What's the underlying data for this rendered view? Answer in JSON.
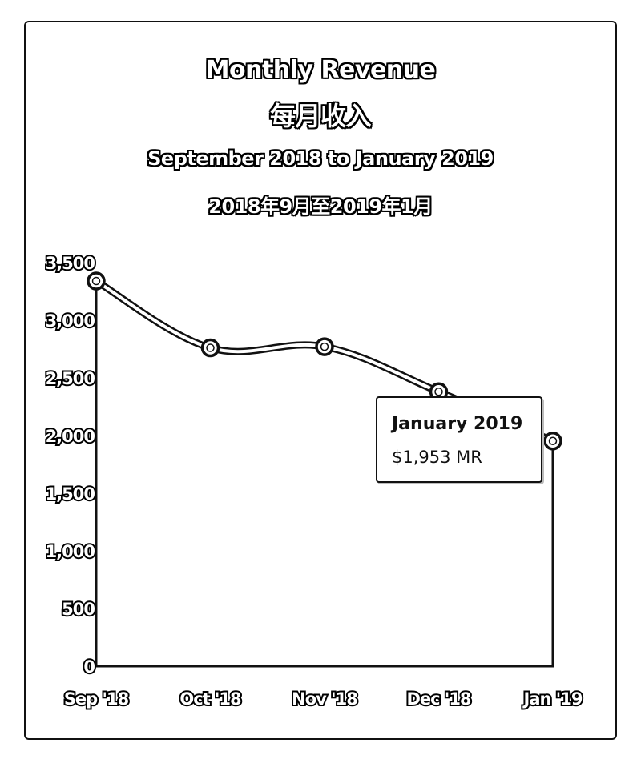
{
  "chart_data": {
    "type": "area",
    "title": "Monthly Revenue",
    "title_cn": "每月收入",
    "subtitle": "September 2018 to January 2019",
    "subtitle_cn": "2018年9月至2019年1月",
    "categories": [
      "Sep '18",
      "Oct '18",
      "Nov '18",
      "Dec '18",
      "Jan '19"
    ],
    "values": [
      3340,
      2760,
      2770,
      2380,
      1953
    ],
    "ylim": [
      0,
      3500
    ],
    "yticks": [
      "0",
      "500",
      "1,000",
      "1,500",
      "2,000",
      "2,500",
      "3,000",
      "3,500"
    ],
    "grid": false,
    "tooltip": {
      "title": "January 2019",
      "value": "$1,953 MR"
    }
  }
}
